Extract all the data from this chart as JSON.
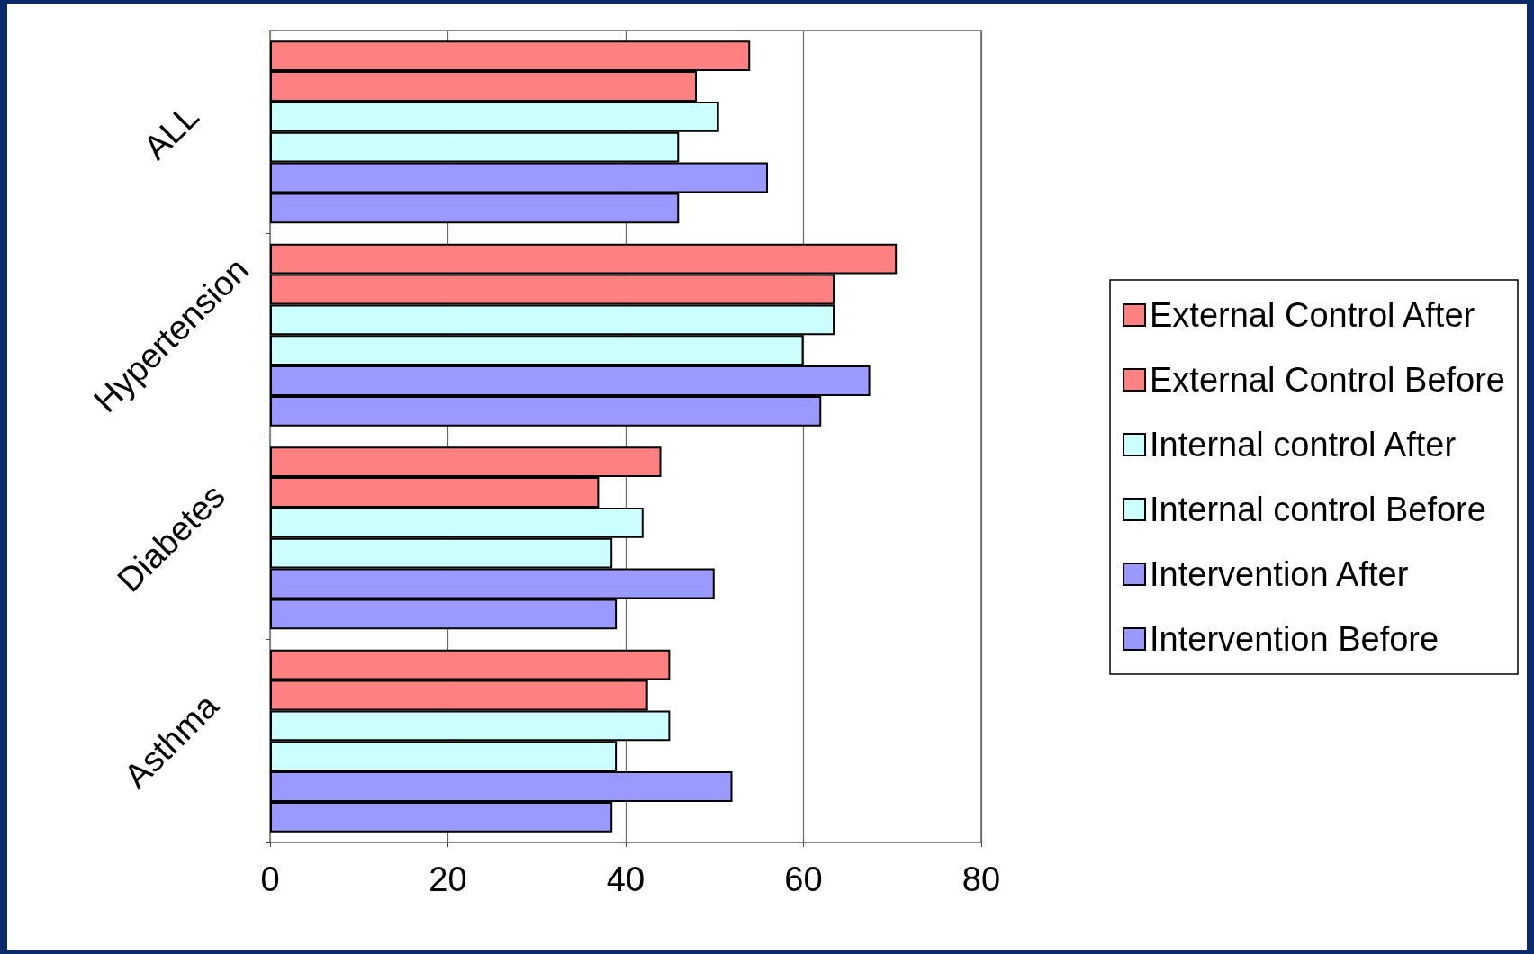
{
  "chart_data": {
    "type": "bar",
    "orientation": "horizontal",
    "categories": [
      "ALL",
      "Hypertension",
      "Diabetes",
      "Asthma"
    ],
    "series": [
      {
        "name": "External Control After",
        "color": "#ff8080",
        "values": [
          54,
          70.5,
          44,
          45
        ]
      },
      {
        "name": "External Control Before",
        "color": "#ff8080",
        "values": [
          48,
          63.5,
          37,
          42.5
        ]
      },
      {
        "name": "Internal control After",
        "color": "#ccffff",
        "values": [
          50.5,
          63.5,
          42,
          45
        ]
      },
      {
        "name": "Internal control Before",
        "color": "#ccffff",
        "values": [
          46,
          60,
          38.5,
          39
        ]
      },
      {
        "name": "Intervention After",
        "color": "#9999ff",
        "values": [
          56,
          67.5,
          50,
          52
        ]
      },
      {
        "name": "Intervention Before",
        "color": "#9999ff",
        "values": [
          46,
          62,
          39,
          38.5
        ]
      }
    ],
    "xlim": [
      0,
      80
    ],
    "xticks": [
      0,
      20,
      40,
      60,
      80
    ],
    "grid": "x",
    "legend": "right"
  }
}
